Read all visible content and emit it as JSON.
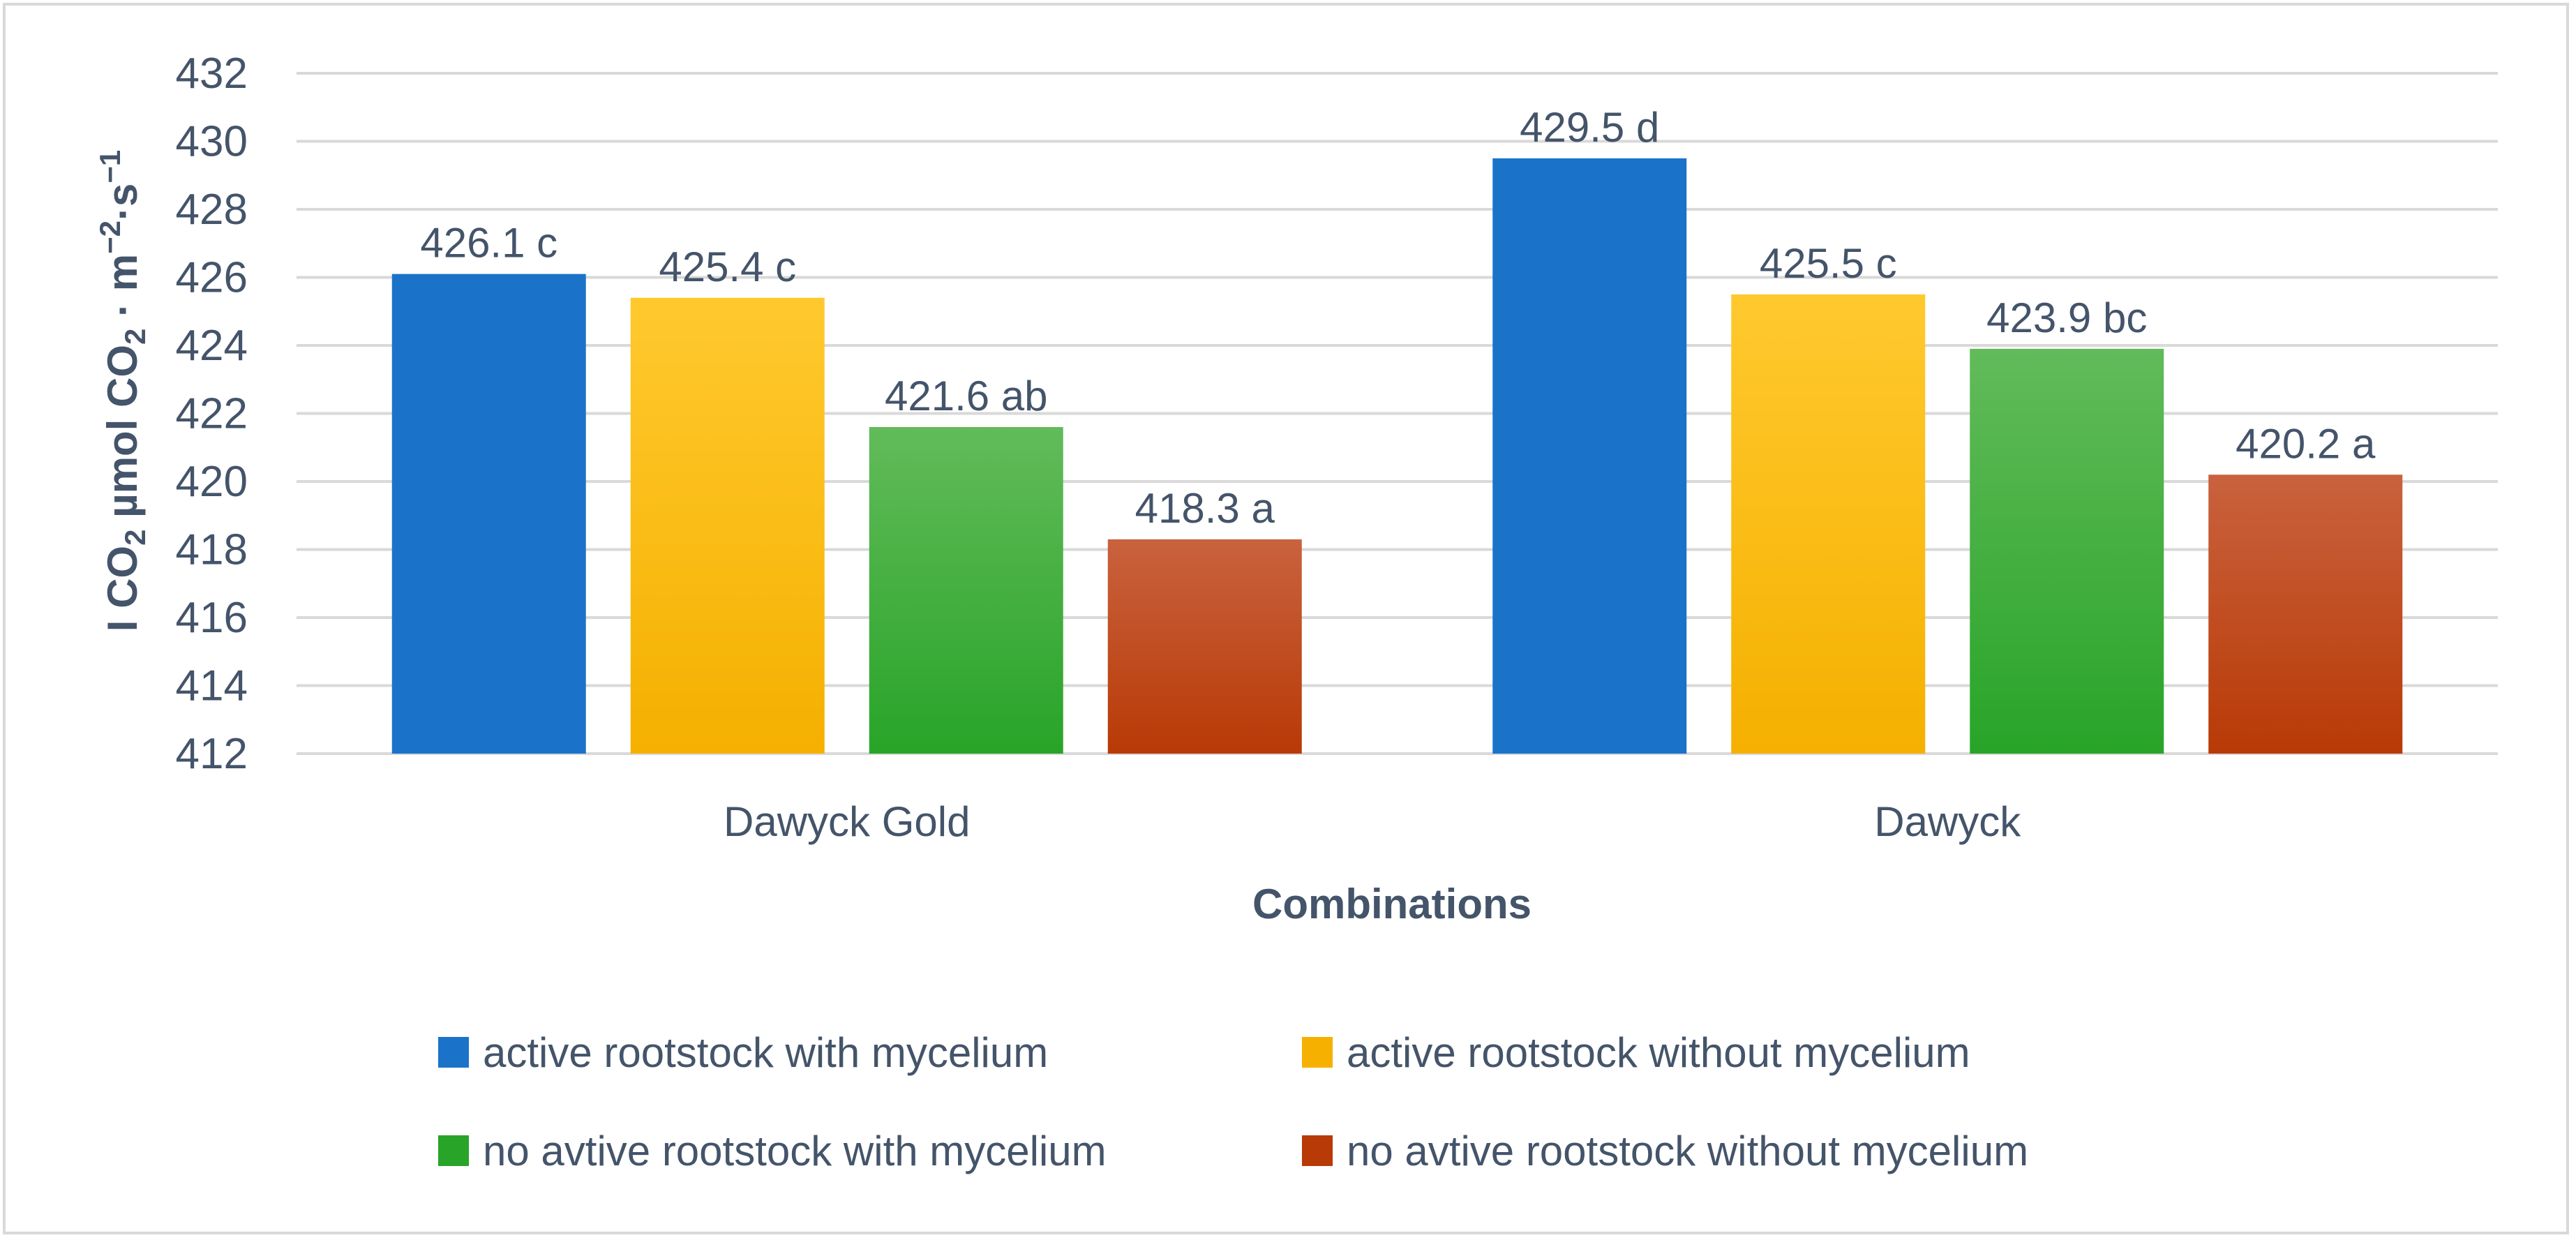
{
  "chart_data": {
    "type": "bar",
    "title": "",
    "xlabel": "Combinations",
    "ylabel_parts": {
      "a": "I CO",
      "b": "2",
      "c": " µmol CO",
      "d": "2",
      "e": " · m",
      "f": "−2",
      "g": "·s",
      "h": "−1"
    },
    "categories": [
      "Dawyck Gold",
      "Dawyck"
    ],
    "ylim": [
      412,
      432
    ],
    "yticks": [
      412,
      414,
      416,
      418,
      420,
      422,
      424,
      426,
      428,
      430,
      432
    ],
    "grid": true,
    "legend_position": "bottom",
    "series": [
      {
        "name": "active rootstock with mycelium",
        "values": [
          426.1,
          429.5
        ],
        "labels": [
          "426.1 c",
          "429.5 d"
        ],
        "color": "#1a73c9",
        "color_top": "#1a73c9"
      },
      {
        "name": "active rootstock without mycelium",
        "values": [
          425.4,
          425.5
        ],
        "labels": [
          "425.4 c",
          "425.5 c"
        ],
        "color": "#f5b000",
        "color_top": "#ffc92e"
      },
      {
        "name": "no avtive rootstock with mycelium",
        "values": [
          421.6,
          423.9
        ],
        "labels": [
          "421.6 ab",
          "423.9 bc"
        ],
        "color": "#28a428",
        "color_top": "#62bb5a"
      },
      {
        "name": "no avtive rootstock without mycelium",
        "values": [
          418.3,
          420.2
        ],
        "labels": [
          "418.3 a",
          "420.2 a"
        ],
        "color": "#b83a06",
        "color_top": "#c9623e"
      }
    ]
  }
}
